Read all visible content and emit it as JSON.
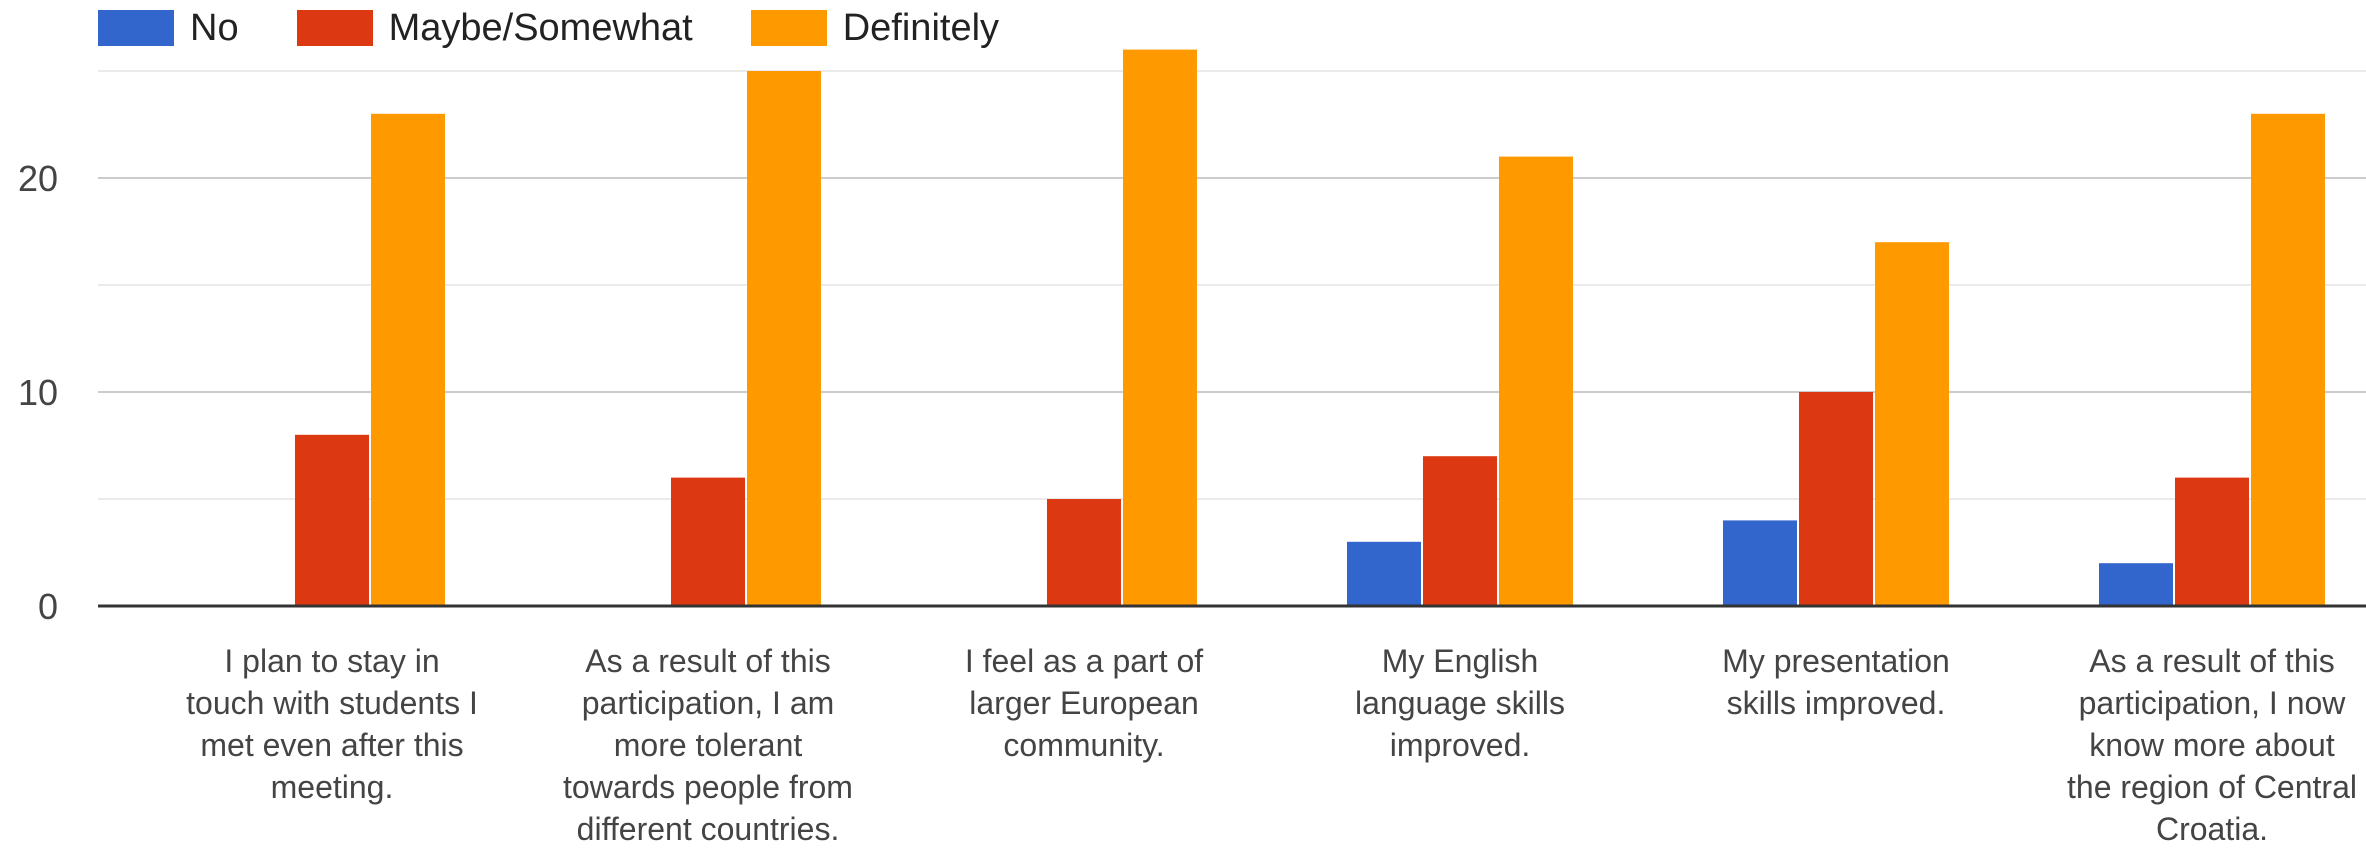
{
  "chart_data": {
    "type": "bar",
    "categories": [
      "I plan to stay in touch with students I met even after this meeting.",
      "As a result of this participation, I am more tolerant towards people from different countries.",
      "I feel as a part of larger European community.",
      "My English language skills improved.",
      "My presentation skills improved.",
      "As a result of this participation, I now know more about the region of Central Croatia."
    ],
    "category_lines": [
      [
        "I plan to stay in",
        "touch with students I",
        "met even after this",
        "meeting."
      ],
      [
        "As a result of this",
        "participation, I am",
        "more tolerant",
        "towards people from",
        "different countries."
      ],
      [
        "I feel as a part of",
        "larger European",
        "community."
      ],
      [
        "My English",
        "language skills",
        "improved."
      ],
      [
        "My presentation",
        "skills improved."
      ],
      [
        "As a result of this",
        "participation, I now",
        "know more about",
        "the region of Central",
        "Croatia."
      ]
    ],
    "series": [
      {
        "name": "No",
        "color": "#3366cc",
        "values": [
          0,
          0,
          0,
          3,
          4,
          2
        ]
      },
      {
        "name": "Maybe/Somewhat",
        "color": "#dc3912",
        "values": [
          8,
          6,
          5,
          7,
          10,
          6
        ]
      },
      {
        "name": "Definitely",
        "color": "#ff9900",
        "values": [
          23,
          25,
          26,
          21,
          17,
          23
        ]
      }
    ],
    "y_ticks": [
      "0",
      "10",
      "20"
    ],
    "ylim": [
      0,
      25
    ],
    "grid": true,
    "legend_position": "top-left"
  }
}
